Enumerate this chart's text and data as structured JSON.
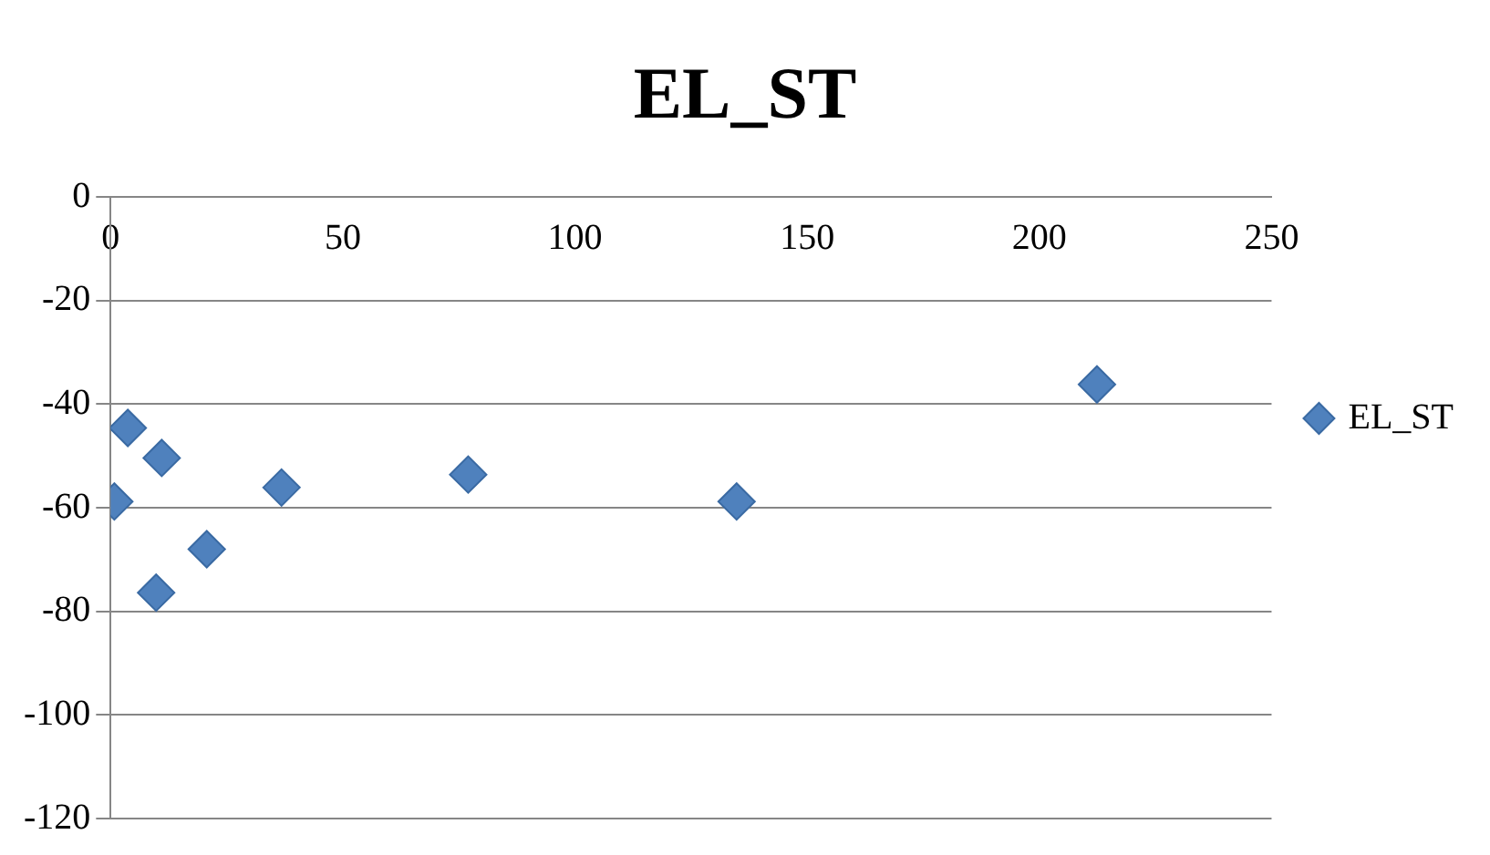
{
  "chart_data": {
    "type": "scatter",
    "title": "EL_ST",
    "x": [
      0.8,
      3.7,
      11,
      9.8,
      20.7,
      36.8,
      77,
      134.8,
      212.4
    ],
    "series": [
      {
        "name": "EL_ST",
        "color": "#4f81bd",
        "values": [
          -58.8,
          -44.6,
          -50.4,
          -76.4,
          -68.0,
          -56.1,
          -53.6,
          -58.8,
          -36.2
        ]
      }
    ],
    "xlim": [
      0,
      250
    ],
    "xticks": [
      0,
      50,
      100,
      150,
      200,
      250
    ],
    "ylim": [
      -120,
      0
    ],
    "yticks": [
      -120,
      -100,
      -80,
      -60,
      -40,
      -20,
      0
    ],
    "grid": "y",
    "legend": "right",
    "marker": "diamond"
  }
}
